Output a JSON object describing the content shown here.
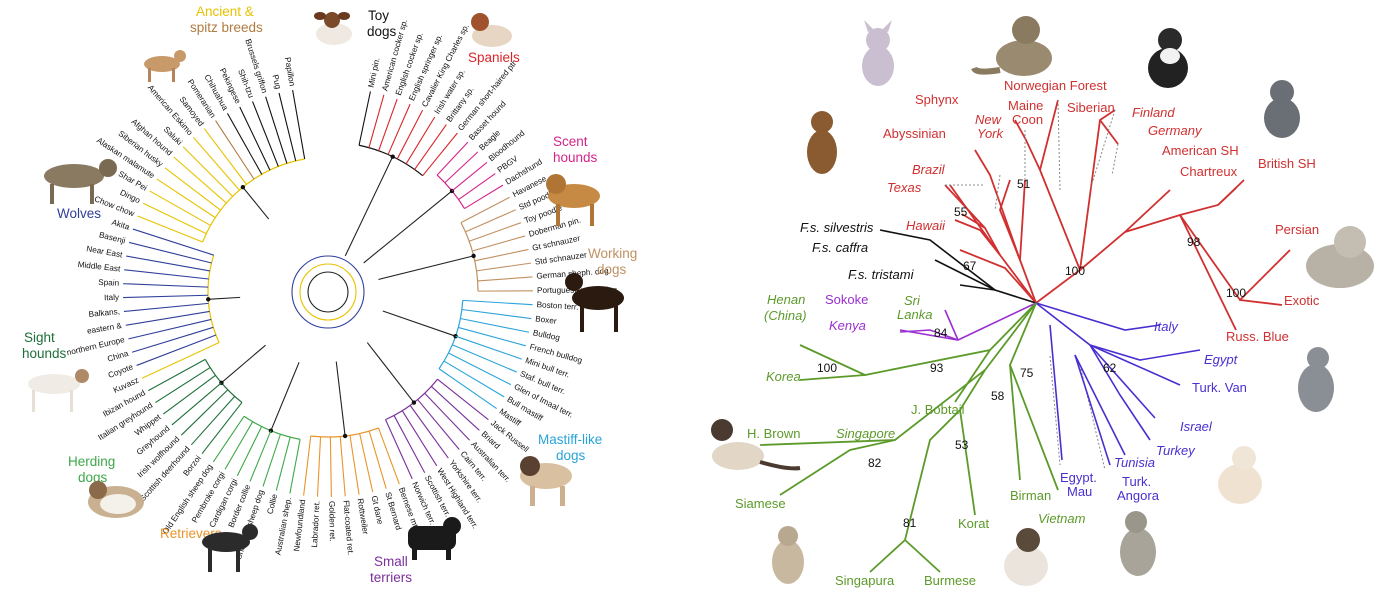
{
  "dog_tree": {
    "groups": [
      {
        "id": "ancient",
        "lines": [
          "Ancient &",
          "spitz breeds"
        ],
        "color": "#e8c200"
      },
      {
        "id": "toy",
        "lines": [
          "Toy",
          "dogs"
        ],
        "color": "#111111"
      },
      {
        "id": "spaniels",
        "lines": [
          "Spaniels"
        ],
        "color": "#d9262a"
      },
      {
        "id": "scent",
        "lines": [
          "Scent",
          "hounds"
        ],
        "color": "#d4248a"
      },
      {
        "id": "working",
        "lines": [
          "Working",
          "dogs"
        ],
        "color": "#c09060"
      },
      {
        "id": "mastiff",
        "lines": [
          "Mastiff-like",
          "dogs"
        ],
        "color": "#2aa3d8"
      },
      {
        "id": "terriers",
        "lines": [
          "Small",
          "terriers"
        ],
        "color": "#7a2f9a"
      },
      {
        "id": "retrievers",
        "lines": [
          "Retrievers"
        ],
        "color": "#e8952a"
      },
      {
        "id": "herding",
        "lines": [
          "Herding",
          "dogs"
        ],
        "color": "#3ea84a"
      },
      {
        "id": "sight",
        "lines": [
          "Sight",
          "hounds"
        ],
        "color": "#1e6e3a"
      },
      {
        "id": "wolves",
        "lines": [
          "Wolves"
        ],
        "color": "#2f3f9a"
      }
    ],
    "leaves": [
      "Mini pin.",
      "American cocker sp.",
      "English cocker sp.",
      "English springer sp.",
      "Cavalier King Charles sp.",
      "Irish water sp.",
      "Brittany sp.",
      "German short-haired ptr",
      "Basset hound",
      "Beagle",
      "Bloodhound",
      "PBGV",
      "Dachshund",
      "Havanese",
      "Std poodle",
      "Toy poodle",
      "Doberman pin.",
      "Gt schnauzer",
      "Std schnauzer",
      "German sheph. dog",
      "Portuguese water dog",
      "Boston terr.",
      "Boxer",
      "Bulldog",
      "French bulldog",
      "Mini bull terr.",
      "Staf. bull terr.",
      "Glen of Imaal terr.",
      "Bull mastiff",
      "Mastiff",
      "Jack Russell",
      "Briard",
      "Australian terr.",
      "Cairn terr.",
      "Yorkshire terr.",
      "West Highland terr.",
      "Scottish terr.",
      "Norwich terr.",
      "Bernese mtn dog",
      "St Bernard",
      "Gt dane",
      "Rottweiler",
      "Flat-coated ret.",
      "Golden ret.",
      "Labrador ret.",
      "Newfoundland",
      "Australian shep.",
      "Collie",
      "Shetland sheep dog",
      "Border collie",
      "Cardigan corgi",
      "Pembroke corgi",
      "Old English sheep dog",
      "Borzoi",
      "Scottish deerhound",
      "Irish wolfhound",
      "Greyhound",
      "Whippet",
      "Italian greyhound",
      "Ibizan hound",
      "Kuvasz",
      "Coyote",
      "China",
      "northern Europe",
      "eastern &",
      "Balkans,",
      "Italy",
      "Spain",
      "Middle East",
      "Near East",
      "Basenji",
      "Akita",
      "Chow chow",
      "Dingo",
      "Shar Pei",
      "Alaskan malamute",
      "Siberian husky",
      "Afghan hound",
      "Saluki",
      "American Eskimo",
      "Samoyed",
      "Pomeranian",
      "Chihuahua",
      "Pekingese",
      "Shih-tzu",
      "Brussels griffon",
      "Pug",
      "Papillon"
    ]
  },
  "cat_tree": {
    "labels": [
      {
        "id": "norwegian",
        "text": "Norwegian Forest",
        "color": "#d03030",
        "italic": false
      },
      {
        "id": "sphynx",
        "text": "Sphynx",
        "color": "#d03030",
        "italic": false
      },
      {
        "id": "maine1",
        "text": "Maine",
        "color": "#d03030",
        "italic": false
      },
      {
        "id": "maine2",
        "text": "Coon",
        "color": "#d03030",
        "italic": false
      },
      {
        "id": "newyork1",
        "text": "New",
        "color": "#d03030",
        "italic": true
      },
      {
        "id": "newyork2",
        "text": "York",
        "color": "#d03030",
        "italic": true
      },
      {
        "id": "siberian",
        "text": "Siberian",
        "color": "#d03030",
        "italic": false
      },
      {
        "id": "finland",
        "text": "Finland",
        "color": "#d03030",
        "italic": true
      },
      {
        "id": "germany",
        "text": "Germany",
        "color": "#d03030",
        "italic": true
      },
      {
        "id": "abyssinian",
        "text": "Abyssinian",
        "color": "#d03030",
        "italic": false
      },
      {
        "id": "american_sh",
        "text": "American SH",
        "color": "#d03030",
        "italic": false
      },
      {
        "id": "british_sh",
        "text": "British SH",
        "color": "#d03030",
        "italic": false
      },
      {
        "id": "chartreux",
        "text": "Chartreux",
        "color": "#d03030",
        "italic": false
      },
      {
        "id": "brazil",
        "text": "Brazil",
        "color": "#d03030",
        "italic": true
      },
      {
        "id": "texas",
        "text": "Texas",
        "color": "#d03030",
        "italic": true
      },
      {
        "id": "hawaii",
        "text": "Hawaii",
        "color": "#d03030",
        "italic": true
      },
      {
        "id": "persian",
        "text": "Persian",
        "color": "#d03030",
        "italic": false
      },
      {
        "id": "exotic",
        "text": "Exotic",
        "color": "#d03030",
        "italic": false
      },
      {
        "id": "russ_blue",
        "text": "Russ. Blue",
        "color": "#d03030",
        "italic": false
      },
      {
        "id": "silvestris",
        "text": "F.s. silvestris",
        "color": "#111111",
        "italic": true
      },
      {
        "id": "caffra",
        "text": "F.s. caffra",
        "color": "#111111",
        "italic": true
      },
      {
        "id": "tristami",
        "text": "F.s. tristami",
        "color": "#111111",
        "italic": true
      },
      {
        "id": "henan1",
        "text": "Henan",
        "color": "#5c9a2a",
        "italic": true
      },
      {
        "id": "henan2",
        "text": "(China)",
        "color": "#5c9a2a",
        "italic": true
      },
      {
        "id": "sokoke",
        "text": "Sokoke",
        "color": "#9b2fd0",
        "italic": false
      },
      {
        "id": "kenya",
        "text": "Kenya",
        "color": "#9b2fd0",
        "italic": true
      },
      {
        "id": "srilanka1",
        "text": "Sri",
        "color": "#5c9a2a",
        "italic": true
      },
      {
        "id": "srilanka2",
        "text": "Lanka",
        "color": "#5c9a2a",
        "italic": true
      },
      {
        "id": "italy",
        "text": "Italy",
        "color": "#4a2fd0",
        "italic": true
      },
      {
        "id": "egypt",
        "text": "Egypt",
        "color": "#4a2fd0",
        "italic": true
      },
      {
        "id": "turk_van",
        "text": "Turk. Van",
        "color": "#4a2fd0",
        "italic": false
      },
      {
        "id": "korea",
        "text": "Korea",
        "color": "#5c9a2a",
        "italic": true
      },
      {
        "id": "jbobtail",
        "text": "J. Bobtail",
        "color": "#5c9a2a",
        "italic": false
      },
      {
        "id": "israel",
        "text": "Israel",
        "color": "#4a2fd0",
        "italic": true
      },
      {
        "id": "turkey",
        "text": "Turkey",
        "color": "#4a2fd0",
        "italic": true
      },
      {
        "id": "hbrown",
        "text": "H. Brown",
        "color": "#5c9a2a",
        "italic": false
      },
      {
        "id": "singapore",
        "text": "Singapore",
        "color": "#5c9a2a",
        "italic": true
      },
      {
        "id": "tunisia",
        "text": "Tunisia",
        "color": "#4a2fd0",
        "italic": true
      },
      {
        "id": "turk_angora1",
        "text": "Turk.",
        "color": "#4a2fd0",
        "italic": false
      },
      {
        "id": "turk_angora2",
        "text": "Angora",
        "color": "#4a2fd0",
        "italic": false
      },
      {
        "id": "egypt_mau1",
        "text": "Egypt.",
        "color": "#4a2fd0",
        "italic": false
      },
      {
        "id": "egypt_mau2",
        "text": "Mau",
        "color": "#4a2fd0",
        "italic": false
      },
      {
        "id": "birman",
        "text": "Birman",
        "color": "#5c9a2a",
        "italic": false
      },
      {
        "id": "vietnam",
        "text": "Vietnam",
        "color": "#5c9a2a",
        "italic": true
      },
      {
        "id": "siamese",
        "text": "Siamese",
        "color": "#5c9a2a",
        "italic": false
      },
      {
        "id": "korat",
        "text": "Korat",
        "color": "#5c9a2a",
        "italic": false
      },
      {
        "id": "singapura",
        "text": "Singapura",
        "color": "#5c9a2a",
        "italic": false
      },
      {
        "id": "burmese",
        "text": "Burmese",
        "color": "#5c9a2a",
        "italic": false
      }
    ],
    "bootstraps": [
      "51",
      "55",
      "67",
      "98",
      "100",
      "100",
      "84",
      "100",
      "93",
      "75",
      "58",
      "62",
      "53",
      "82",
      "81"
    ]
  }
}
